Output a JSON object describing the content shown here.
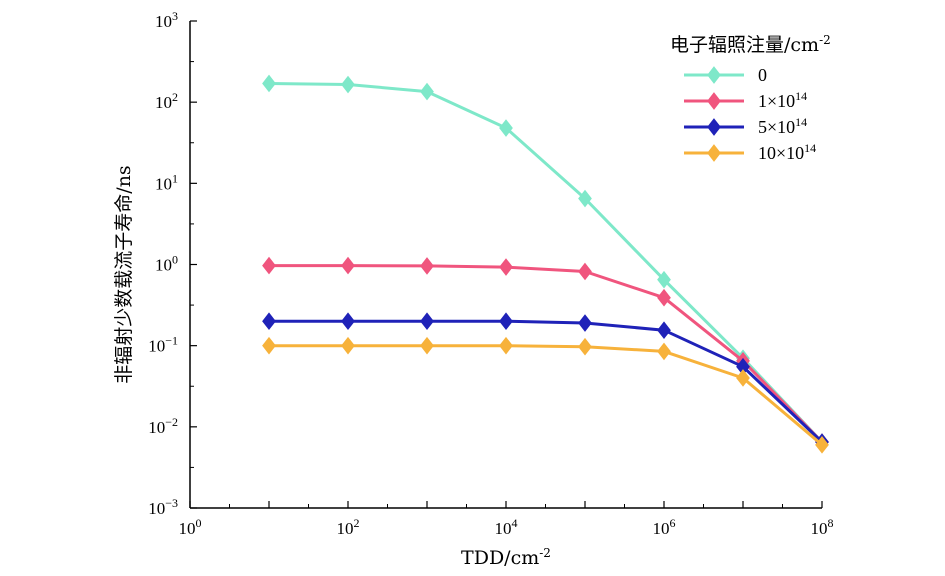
{
  "chart_data": {
    "type": "line",
    "xlabel": "TDD/cm",
    "xlabel_sup": "-2",
    "ylabel": "非辐射少数载流子寿命/ns",
    "x_scale": "log",
    "y_scale": "log",
    "xlim": [
      1,
      100000000
    ],
    "ylim": [
      0.001,
      1000
    ],
    "x_ticks": [
      {
        "value": 1,
        "base": "10",
        "exp": "0"
      },
      {
        "value": 100,
        "base": "10",
        "exp": "2"
      },
      {
        "value": 10000,
        "base": "10",
        "exp": "4"
      },
      {
        "value": 1000000,
        "base": "10",
        "exp": "6"
      },
      {
        "value": 100000000,
        "base": "10",
        "exp": "8"
      }
    ],
    "y_ticks": [
      {
        "value": 1000,
        "base": "10",
        "exp": "3"
      },
      {
        "value": 100,
        "base": "10",
        "exp": "2"
      },
      {
        "value": 10,
        "base": "10",
        "exp": "1"
      },
      {
        "value": 1,
        "base": "10",
        "exp": "0"
      },
      {
        "value": 0.1,
        "base": "10",
        "exp": "−1"
      },
      {
        "value": 0.01,
        "base": "10",
        "exp": "−2"
      },
      {
        "value": 0.001,
        "base": "10",
        "exp": "−3"
      }
    ],
    "legend": {
      "title": "电子辐照注量/cm",
      "title_sup": "-2",
      "placement": "top-right"
    },
    "x": [
      10,
      100,
      1000,
      10000,
      100000,
      1000000,
      10000000,
      100000000
    ],
    "series": [
      {
        "name": "0",
        "name_sup": "",
        "color": "#7ee8c9",
        "values": [
          170,
          165,
          135,
          48,
          6.5,
          0.65,
          0.07,
          0.0065
        ]
      },
      {
        "name": "1×10",
        "name_sup": "14",
        "color": "#f0557e",
        "values": [
          0.97,
          0.97,
          0.96,
          0.93,
          0.82,
          0.39,
          0.065,
          0.0065
        ]
      },
      {
        "name": "5×10",
        "name_sup": "14",
        "color": "#1f22b8",
        "values": [
          0.2,
          0.2,
          0.2,
          0.2,
          0.19,
          0.155,
          0.055,
          0.0065
        ]
      },
      {
        "name": "10×10",
        "name_sup": "14",
        "color": "#f7b23b",
        "values": [
          0.1,
          0.1,
          0.1,
          0.1,
          0.097,
          0.085,
          0.04,
          0.006
        ]
      }
    ]
  }
}
